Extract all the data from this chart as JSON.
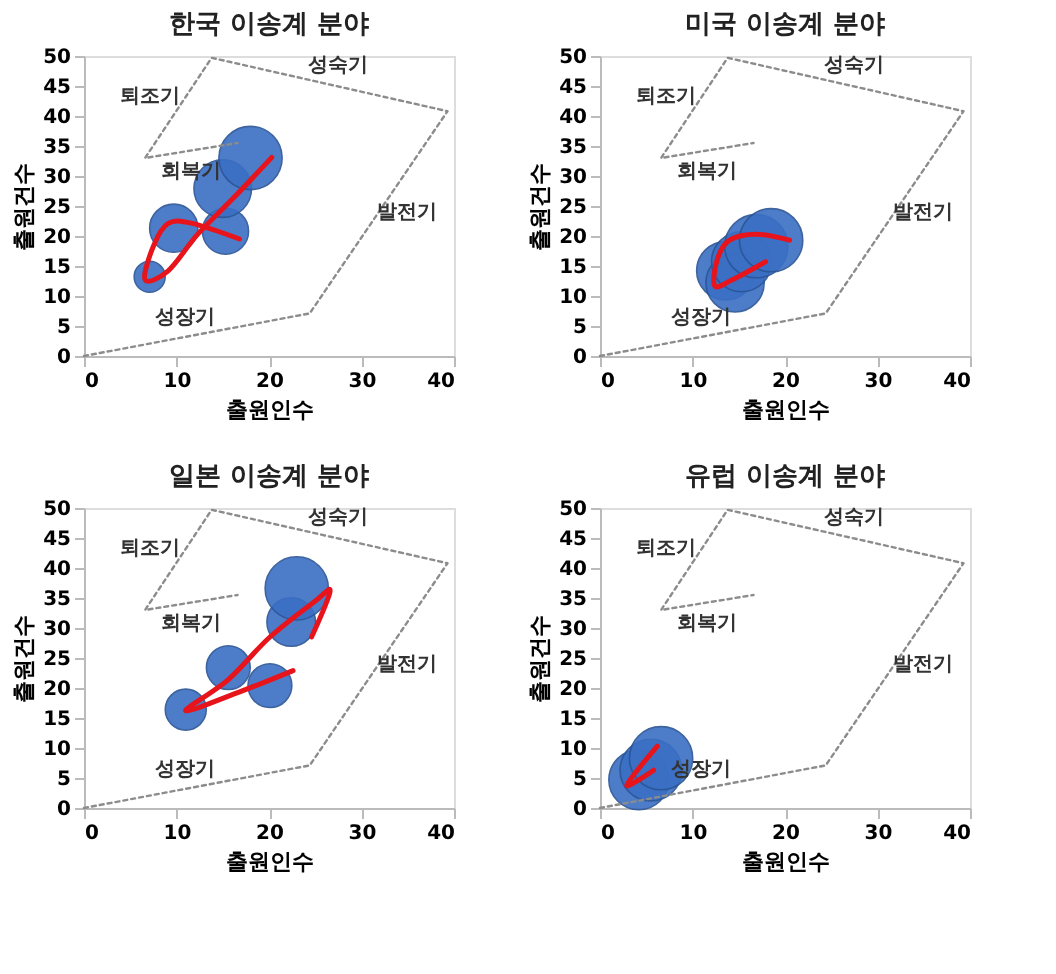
{
  "chart_data": [
    {
      "type": "bubble",
      "title": "한국 이송계 분야",
      "xlabel": "출원인수",
      "ylabel": "출원건수",
      "xlim": [
        0,
        40
      ],
      "ylim": [
        0,
        50
      ],
      "xticks": [
        0,
        10,
        20,
        30,
        40
      ],
      "yticks": [
        0,
        5,
        10,
        15,
        20,
        25,
        30,
        35,
        40,
        45,
        50
      ],
      "grid": false,
      "series": [
        {
          "color": "#3a6fc4",
          "x": [
            7.1,
            9.7,
            15.3,
            15,
            18
          ],
          "values": [
            13.2,
            21.3,
            20.8,
            27.9,
            33
          ],
          "sizes": [
            0.24,
            0.58,
            0.53,
            0.83,
            1
          ]
        },
        {
          "type": "line",
          "color": "#e8141b",
          "x": [
            16.8,
            11.7,
            9.1,
            7.5,
            6.6,
            9.1,
            12.3,
            16.2,
            20.3
          ],
          "values": [
            19.5,
            22.1,
            22.1,
            18.3,
            12.7,
            14.2,
            20.3,
            26.4,
            33.1
          ]
        },
        {
          "type": "line",
          "color": "#8c8c8c",
          "line_style": "dotted",
          "x": [
            0,
            24.4,
            39.3,
            13.8,
            6.6,
            16.6
          ],
          "values": [
            0,
            7.1,
            40.8,
            49.7,
            33,
            35.5
          ]
        }
      ],
      "annotations": [
        "성장기",
        "발전기",
        "성숙기",
        "퇴조기",
        "회복기"
      ]
    },
    {
      "type": "bubble",
      "title": "미국 이송계 분야",
      "xlabel": "출원인수",
      "ylabel": "출원건수",
      "xlim": [
        0,
        40
      ],
      "ylim": [
        0,
        50
      ],
      "xticks": [
        0,
        10,
        20,
        30,
        40
      ],
      "yticks": [
        0,
        5,
        10,
        15,
        20,
        25,
        30,
        35,
        40,
        45,
        50
      ],
      "grid": false,
      "series": [
        {
          "color": "#3a6fc4",
          "x": [
            13.6,
            14.6,
            15.3,
            16.9,
            18.5
          ],
          "values": [
            14.2,
            12.2,
            15.7,
            18.3,
            19.3
          ],
          "sizes": [
            0.85,
            0.85,
            0.9,
            1,
            1
          ]
        },
        {
          "type": "line",
          "color": "#e8141b",
          "x": [
            20.5,
            16.9,
            14,
            12.7,
            12.4,
            14.3,
            17.9
          ],
          "values": [
            19.3,
            20.3,
            19.3,
            16.2,
            11.7,
            12.7,
            15.7
          ]
        },
        {
          "type": "line",
          "color": "#8c8c8c",
          "line_style": "dotted",
          "x": [
            0,
            24.4,
            39.3,
            13.8,
            6.6,
            16.6
          ],
          "values": [
            0,
            7.1,
            40.8,
            49.7,
            33,
            35.5
          ]
        }
      ],
      "annotations": [
        "성장기",
        "발전기",
        "성숙기",
        "퇴조기",
        "회복기"
      ]
    },
    {
      "type": "bubble",
      "title": "일본 이송계 분야",
      "xlabel": "출원인수",
      "ylabel": "출원건수",
      "xlim": [
        0,
        40
      ],
      "ylim": [
        0,
        50
      ],
      "xticks": [
        0,
        10,
        20,
        30,
        40
      ],
      "yticks": [
        0,
        5,
        10,
        15,
        20,
        25,
        30,
        35,
        40,
        45,
        50
      ],
      "grid": false,
      "series": [
        {
          "color": "#3a6fc4",
          "x": [
            11,
            15.6,
            20.1,
            22.4,
            23
          ],
          "values": [
            16.4,
            23.4,
            20.4,
            31,
            36.6
          ],
          "sizes": [
            0.42,
            0.48,
            0.48,
            0.59,
            1
          ]
        },
        {
          "type": "line",
          "color": "#e8141b",
          "x": [
            24.6,
            26.6,
            25,
            20.1,
            15.6,
            11,
            16.9,
            22.6
          ],
          "values": [
            28.5,
            36.1,
            34.5,
            28.5,
            21.4,
            16.2,
            19.4,
            22.9
          ]
        },
        {
          "type": "line",
          "color": "#8c8c8c",
          "line_style": "dotted",
          "x": [
            0,
            24.4,
            39.3,
            13.8,
            6.6,
            16.6
          ],
          "values": [
            0,
            7.1,
            40.8,
            49.7,
            33,
            35.5
          ]
        }
      ],
      "annotations": [
        "성장기",
        "발전기",
        "성숙기",
        "퇴조기",
        "회복기"
      ]
    },
    {
      "type": "bubble",
      "title": "유럽 이송계 분야",
      "xlabel": "출원인수",
      "ylabel": "출원건수",
      "xlim": [
        0,
        40
      ],
      "ylim": [
        0,
        50
      ],
      "xticks": [
        0,
        10,
        20,
        30,
        40
      ],
      "yticks": [
        0,
        5,
        10,
        15,
        20,
        25,
        30,
        35,
        40,
        45,
        50
      ],
      "grid": false,
      "series": [
        {
          "color": "#3a6fc4",
          "x": [
            4.2,
            5.5,
            6.6
          ],
          "values": [
            4.7,
            6.3,
            8.3
          ],
          "sizes": [
            0.9,
            0.95,
            1
          ]
        },
        {
          "type": "line",
          "color": "#e8141b",
          "x": [
            6.2,
            2.9,
            5.8
          ],
          "values": [
            10.3,
            3.8,
            6.3
          ]
        },
        {
          "type": "line",
          "color": "#8c8c8c",
          "line_style": "dotted",
          "x": [
            0,
            24.4,
            39.3,
            13.8,
            6.6,
            16.6
          ],
          "values": [
            0,
            7.1,
            40.8,
            49.7,
            33,
            35.5
          ]
        }
      ],
      "annotations": [
        "성장기",
        "발전기",
        "성숙기",
        "퇴조기",
        "회복기"
      ]
    }
  ]
}
